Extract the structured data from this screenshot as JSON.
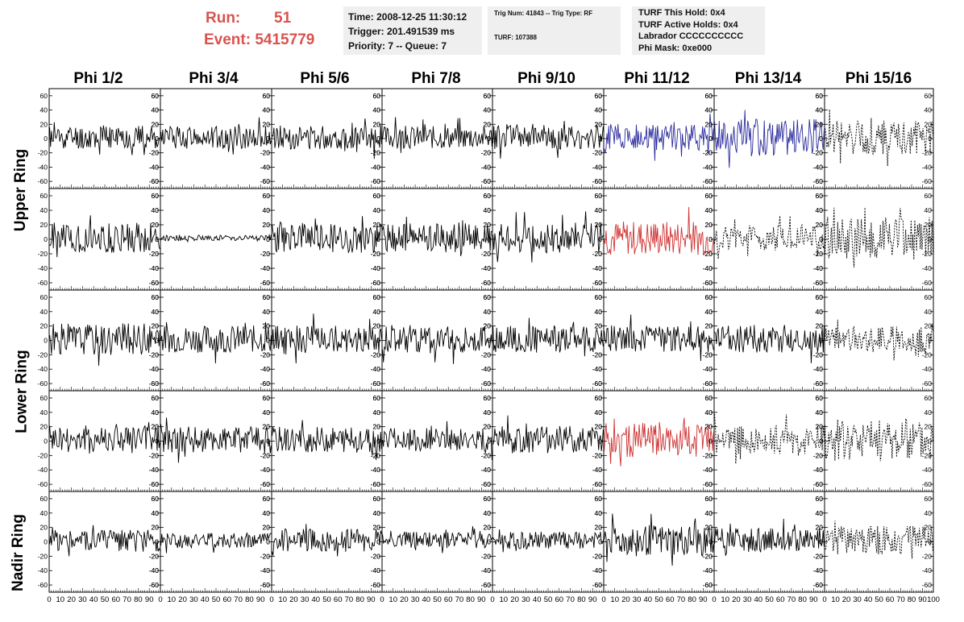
{
  "header": {
    "run_label": "Run:",
    "run_value": "51",
    "event_label": "Event:",
    "event_value": "5415779"
  },
  "time_box": {
    "line1": "Time: 2008-12-25 11:30:12",
    "line2": "Trigger: 201.491539 ms",
    "line3": "Priority: 7 -- Queue: 7"
  },
  "trig_box": {
    "line1": "Trig Num: 41843 -- Trig Type: RF",
    "line2": "TURF: 107388"
  },
  "turf_box": {
    "line1": "TURF This Hold: 0x4",
    "line2": "TURF Active Holds: 0x4",
    "line3": "Labrador CCCCCCCCCC",
    "line4": "Phi Mask: 0xe000"
  },
  "columns": [
    "Phi 1/2",
    "Phi 3/4",
    "Phi 5/6",
    "Phi 7/8",
    "Phi 9/10",
    "Phi 11/12",
    "Phi 13/14",
    "Phi 15/16"
  ],
  "rings": [
    "Upper Ring",
    "Lower Ring",
    "Nadir Ring"
  ],
  "chart_data": {
    "type": "line",
    "layout": "grid 5 rows x 8 columns of waveform panels",
    "xlim": [
      0,
      100
    ],
    "ylim": [
      -70,
      70
    ],
    "x_ticks": [
      "0",
      "10",
      "20",
      "30",
      "40",
      "50",
      "60",
      "70",
      "80",
      "90",
      "100"
    ],
    "y_ticks": [
      "60",
      "40",
      "20",
      "0",
      "-20",
      "-40",
      "-60"
    ],
    "highlight_colors": {
      "blue": "#2b2b9e",
      "red": "#d03030",
      "default": "#000000"
    },
    "panels": [
      [
        {
          "amp": 17,
          "color": "default",
          "style": "solid",
          "seed": 11
        },
        {
          "amp": 16,
          "color": "default",
          "style": "solid",
          "seed": 12
        },
        {
          "amp": 17,
          "color": "default",
          "style": "solid",
          "seed": 13
        },
        {
          "amp": 16,
          "color": "default",
          "style": "solid",
          "seed": 14
        },
        {
          "amp": 17,
          "color": "default",
          "style": "solid",
          "seed": 15
        },
        {
          "amp": 19,
          "color": "blue",
          "style": "solid",
          "seed": 16
        },
        {
          "amp": 26,
          "color": "blue",
          "style": "solid",
          "seed": 17
        },
        {
          "amp": 24,
          "color": "default",
          "style": "dashed",
          "seed": 18
        }
      ],
      [
        {
          "amp": 21,
          "color": "default",
          "style": "solid",
          "seed": 21
        },
        {
          "amp": 4,
          "color": "default",
          "style": "solid",
          "seed": 22
        },
        {
          "amp": 21,
          "color": "default",
          "style": "solid",
          "seed": 23
        },
        {
          "amp": 20,
          "color": "default",
          "style": "solid",
          "seed": 24
        },
        {
          "amp": 21,
          "color": "default",
          "style": "solid",
          "seed": 25
        },
        {
          "amp": 24,
          "color": "red",
          "style": "solid",
          "seed": 26
        },
        {
          "amp": 18,
          "color": "default",
          "style": "dashed",
          "seed": 27
        },
        {
          "amp": 30,
          "color": "default",
          "style": "dashed",
          "seed": 28
        }
      ],
      [
        {
          "amp": 22,
          "color": "default",
          "style": "solid",
          "seed": 31
        },
        {
          "amp": 19,
          "color": "default",
          "style": "solid",
          "seed": 32
        },
        {
          "amp": 20,
          "color": "default",
          "style": "solid",
          "seed": 33
        },
        {
          "amp": 20,
          "color": "default",
          "style": "solid",
          "seed": 34
        },
        {
          "amp": 19,
          "color": "default",
          "style": "solid",
          "seed": 35
        },
        {
          "amp": 19,
          "color": "default",
          "style": "solid",
          "seed": 36
        },
        {
          "amp": 20,
          "color": "default",
          "style": "solid",
          "seed": 37
        },
        {
          "amp": 18,
          "color": "default",
          "style": "dashed",
          "seed": 38
        }
      ],
      [
        {
          "amp": 20,
          "color": "default",
          "style": "solid",
          "seed": 41
        },
        {
          "amp": 19,
          "color": "default",
          "style": "solid",
          "seed": 42
        },
        {
          "amp": 18,
          "color": "default",
          "style": "solid",
          "seed": 43
        },
        {
          "amp": 16,
          "color": "default",
          "style": "solid",
          "seed": 44
        },
        {
          "amp": 19,
          "color": "default",
          "style": "solid",
          "seed": 45
        },
        {
          "amp": 24,
          "color": "red",
          "style": "solid",
          "seed": 46
        },
        {
          "amp": 20,
          "color": "default",
          "style": "dashed",
          "seed": 47
        },
        {
          "amp": 30,
          "color": "default",
          "style": "dashed",
          "seed": 48
        }
      ],
      [
        {
          "amp": 16,
          "color": "default",
          "style": "solid",
          "seed": 51
        },
        {
          "amp": 11,
          "color": "default",
          "style": "solid",
          "seed": 52
        },
        {
          "amp": 16,
          "color": "default",
          "style": "solid",
          "seed": 53
        },
        {
          "amp": 12,
          "color": "default",
          "style": "solid",
          "seed": 54
        },
        {
          "amp": 12,
          "color": "default",
          "style": "solid",
          "seed": 55
        },
        {
          "amp": 22,
          "color": "default",
          "style": "solid",
          "seed": 56
        },
        {
          "amp": 17,
          "color": "default",
          "style": "solid",
          "seed": 57
        },
        {
          "amp": 20,
          "color": "default",
          "style": "dashed",
          "seed": 58
        }
      ]
    ]
  }
}
